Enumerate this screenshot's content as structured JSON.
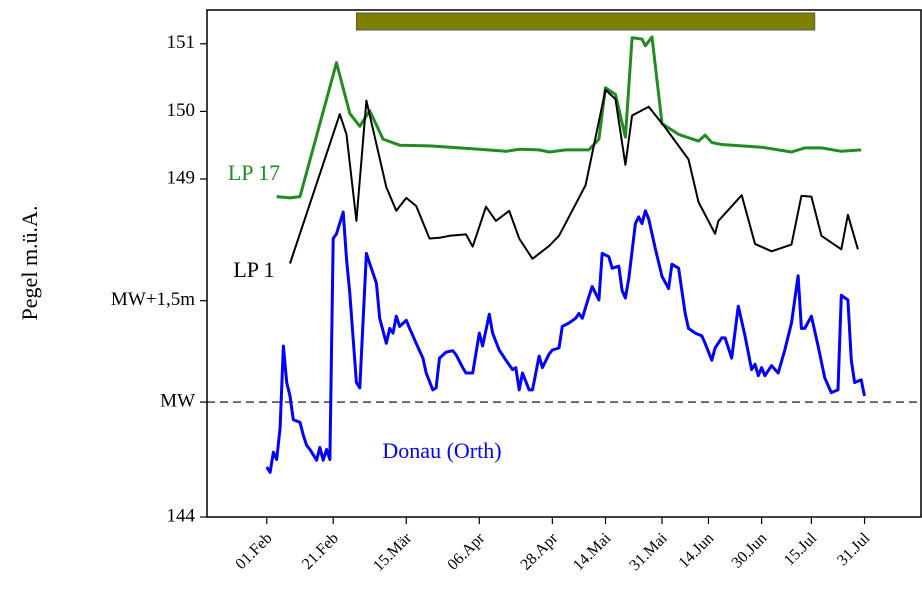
{
  "chart_data": {
    "type": "line",
    "y_label": "Pegel m.ü.A.",
    "xlim": [
      "01-14",
      "08-17"
    ],
    "xticks": [
      {
        "value": "02-01",
        "label": "01.Feb"
      },
      {
        "value": "02-21",
        "label": "21.Feb"
      },
      {
        "value": "03-15",
        "label": "15.Mär"
      },
      {
        "value": "04-06",
        "label": "06.Apr"
      },
      {
        "value": "04-28",
        "label": "28.Apr"
      },
      {
        "value": "05-14",
        "label": "14.Mai"
      },
      {
        "value": "05-31",
        "label": "31.Mai"
      },
      {
        "value": "06-14",
        "label": "14.Jun"
      },
      {
        "value": "06-30",
        "label": "30.Jun"
      },
      {
        "value": "07-15",
        "label": "15.Jul"
      },
      {
        "value": "07-31",
        "label": "31.Jul"
      }
    ],
    "ylim": [
      144,
      151.5
    ],
    "yticks": [
      144,
      {
        "value": 145.7,
        "label": "MW"
      },
      {
        "value": 147.2,
        "label": "MW+1,5m"
      },
      149,
      150,
      151
    ],
    "reference_line": {
      "y": 145.7,
      "style": "dashed",
      "color": "#000000"
    },
    "highlight": {
      "x": [
        "02-28",
        "07-16"
      ],
      "color": "#808000"
    },
    "series": [
      {
        "name": "LP 17",
        "color": "#228B22",
        "x": [
          "02-04",
          "02-08",
          "02-11",
          "02-22",
          "02-26",
          "03-01",
          "03-04",
          "03-08",
          "03-13",
          "03-22",
          "03-31",
          "04-06",
          "04-14",
          "04-18",
          "04-24",
          "04-27",
          "05-02",
          "05-09",
          "05-12",
          "05-14",
          "05-17",
          "05-20",
          "05-22",
          "05-25",
          "05-26",
          "05-28",
          "05-31",
          "06-05",
          "06-11",
          "06-13",
          "06-15",
          "06-18",
          "06-30",
          "07-09",
          "07-13",
          "07-18",
          "07-24",
          "07-30"
        ],
        "values": [
          148.74,
          148.72,
          148.74,
          150.72,
          149.97,
          149.78,
          150.01,
          149.59,
          149.5,
          149.49,
          149.46,
          149.44,
          149.41,
          149.44,
          149.43,
          149.4,
          149.43,
          149.43,
          149.59,
          150.35,
          150.25,
          149.62,
          151.09,
          151.07,
          150.97,
          151.1,
          149.82,
          149.66,
          149.56,
          149.65,
          149.54,
          149.51,
          149.47,
          149.4,
          149.46,
          149.46,
          149.41,
          149.43
        ]
      },
      {
        "name": "LP 1",
        "color": "#000000",
        "x": [
          "02-08",
          "02-23",
          "02-25",
          "02-28",
          "03-03",
          "03-09",
          "03-12",
          "03-15",
          "03-18",
          "03-22",
          "03-25",
          "03-28",
          "04-02",
          "04-04",
          "04-08",
          "04-11",
          "04-15",
          "04-18",
          "04-22",
          "04-27",
          "04-30",
          "05-08",
          "05-14",
          "05-17",
          "05-20",
          "05-22",
          "05-27",
          "06-01",
          "06-08",
          "06-11",
          "06-16",
          "06-17",
          "06-24",
          "06-28",
          "07-03",
          "07-09",
          "07-12",
          "07-15",
          "07-18",
          "07-24",
          "07-26",
          "07-29"
        ],
        "values": [
          147.75,
          149.96,
          149.66,
          148.38,
          150.16,
          148.88,
          148.53,
          148.72,
          148.6,
          148.12,
          148.13,
          148.16,
          148.18,
          148.0,
          148.59,
          148.38,
          148.53,
          148.12,
          147.82,
          148.01,
          148.16,
          148.91,
          150.32,
          150.18,
          149.21,
          149.94,
          150.07,
          149.76,
          149.29,
          148.66,
          148.19,
          148.38,
          148.76,
          148.04,
          147.93,
          148.03,
          148.75,
          148.74,
          148.16,
          147.96,
          148.47,
          147.96
        ]
      },
      {
        "name": "Donau (Orth)",
        "color": "#0000FF",
        "x": [
          "02-01",
          "02-02",
          "02-03",
          "02-04",
          "02-05",
          "02-06",
          "02-07",
          "02-08",
          "02-09",
          "02-11",
          "02-12",
          "02-13",
          "02-14",
          "02-16",
          "02-17",
          "02-18",
          "02-19",
          "02-20",
          "02-21",
          "02-22",
          "02-24",
          "02-25",
          "02-26",
          "02-27",
          "02-28",
          "03-01",
          "03-03",
          "03-04",
          "03-06",
          "03-07",
          "03-09",
          "03-10",
          "03-11",
          "03-12",
          "03-13",
          "03-15",
          "03-16",
          "03-18",
          "03-20",
          "03-21",
          "03-23",
          "03-24",
          "03-25",
          "03-27",
          "03-29",
          "03-30",
          "04-01",
          "04-02",
          "04-04",
          "04-06",
          "04-07",
          "04-09",
          "04-10",
          "04-12",
          "04-14",
          "04-16",
          "04-17",
          "04-18",
          "04-19",
          "04-21",
          "04-22",
          "04-24",
          "04-25",
          "04-27",
          "04-28",
          "04-30",
          "05-01",
          "05-03",
          "05-05",
          "05-06",
          "05-07",
          "05-09",
          "05-10",
          "05-12",
          "05-13",
          "05-15",
          "05-16",
          "05-18",
          "05-19",
          "05-20",
          "05-21",
          "05-23",
          "05-24",
          "05-25",
          "05-26",
          "05-27",
          "05-29",
          "05-31",
          "06-02",
          "06-03",
          "06-05",
          "06-07",
          "06-08",
          "06-10",
          "06-12",
          "06-13",
          "06-15",
          "06-16",
          "06-18",
          "06-19",
          "06-21",
          "06-23",
          "06-25",
          "06-27",
          "06-28",
          "06-29",
          "06-30",
          "07-01",
          "07-03",
          "07-05",
          "07-07",
          "07-09",
          "07-11",
          "07-12",
          "07-13",
          "07-15",
          "07-17",
          "07-19",
          "07-21",
          "07-23",
          "07-24",
          "07-26",
          "07-27",
          "07-28",
          "07-30",
          "07-31"
        ],
        "values": [
          144.74,
          144.66,
          144.96,
          144.85,
          145.32,
          146.53,
          145.99,
          145.79,
          145.44,
          145.4,
          145.21,
          145.06,
          145.0,
          144.84,
          145.03,
          144.84,
          145.0,
          144.85,
          148.12,
          148.19,
          148.51,
          147.82,
          147.31,
          146.65,
          145.99,
          145.91,
          147.9,
          147.75,
          147.46,
          146.94,
          146.57,
          146.79,
          146.72,
          146.97,
          146.82,
          146.91,
          146.79,
          146.57,
          146.35,
          146.13,
          145.88,
          145.91,
          146.35,
          146.44,
          146.46,
          146.4,
          146.21,
          146.13,
          146.13,
          146.72,
          146.53,
          147.0,
          146.72,
          146.47,
          146.32,
          146.18,
          146.21,
          145.88,
          146.13,
          145.88,
          145.88,
          146.38,
          146.21,
          146.41,
          146.47,
          146.5,
          146.82,
          146.87,
          146.94,
          147.01,
          146.94,
          147.26,
          147.41,
          147.21,
          147.9,
          147.85,
          147.68,
          147.71,
          147.35,
          147.24,
          147.53,
          148.34,
          148.44,
          148.34,
          148.53,
          148.41,
          147.97,
          147.56,
          147.38,
          147.74,
          147.68,
          147.01,
          146.79,
          146.72,
          146.68,
          146.57,
          146.32,
          146.5,
          146.65,
          146.65,
          146.35,
          147.12,
          146.68,
          146.18,
          146.26,
          146.09,
          146.21,
          146.09,
          146.24,
          146.13,
          146.47,
          146.87,
          147.57,
          146.79,
          146.79,
          146.97,
          146.53,
          146.06,
          145.84,
          145.88,
          147.28,
          147.21,
          146.32,
          145.99,
          146.03,
          145.79
        ]
      }
    ]
  }
}
